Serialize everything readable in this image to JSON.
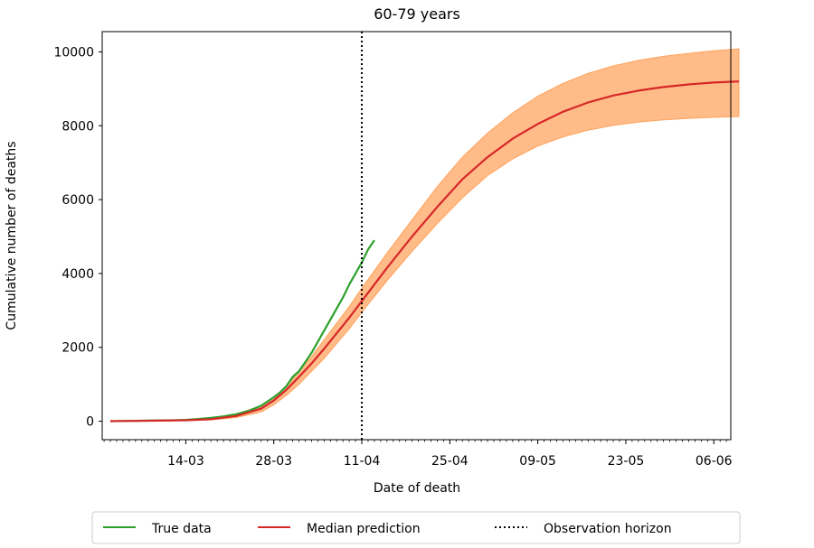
{
  "chart_data": {
    "type": "line",
    "title": "60-79 years",
    "xlabel": "Date of death",
    "ylabel": "Cumulative number of deaths",
    "x_unit": "days since 01-03",
    "xlim": [
      -0.3,
      99.7
    ],
    "ylim": [
      -500,
      10550
    ],
    "yticks": [
      0,
      2000,
      4000,
      6000,
      8000,
      10000
    ],
    "ytick_labels": [
      "0",
      "2000",
      "4000",
      "6000",
      "8000",
      "10000"
    ],
    "xticks": [
      13,
      27,
      41,
      55,
      69,
      83,
      97
    ],
    "xtick_labels": [
      "14-03",
      "28-03",
      "11-04",
      "25-04",
      "09-05",
      "23-05",
      "06-06"
    ],
    "observation_horizon": 41,
    "series": [
      {
        "name": "True data",
        "color": "#2ca02c",
        "x": [
          1,
          3,
          5,
          7,
          9,
          11,
          13,
          15,
          17,
          19,
          21,
          23,
          25,
          27,
          28,
          29,
          30,
          31,
          32,
          33,
          34,
          35,
          36,
          37,
          38,
          39,
          40,
          41,
          42,
          43
        ],
        "y": [
          0,
          5,
          10,
          15,
          20,
          25,
          35,
          60,
          90,
          130,
          190,
          280,
          420,
          650,
          780,
          950,
          1200,
          1350,
          1600,
          1850,
          2150,
          2450,
          2750,
          3050,
          3350,
          3700,
          4000,
          4300,
          4650,
          4900
        ]
      },
      {
        "name": "Median prediction",
        "color": "#d62728",
        "x": [
          1,
          5,
          9,
          13,
          17,
          21,
          25,
          27,
          29,
          31,
          33,
          35,
          37,
          39,
          41,
          45,
          49,
          53,
          57,
          61,
          65,
          69,
          73,
          77,
          81,
          85,
          89,
          93,
          97,
          101
        ],
        "y": [
          0,
          8,
          15,
          25,
          55,
          140,
          340,
          560,
          850,
          1200,
          1560,
          1960,
          2380,
          2800,
          3250,
          4150,
          5000,
          5800,
          6550,
          7150,
          7650,
          8050,
          8380,
          8630,
          8820,
          8950,
          9050,
          9120,
          9170,
          9200
        ]
      }
    ],
    "band": {
      "name": "Prediction interval",
      "color": "#ffbb88",
      "x": [
        1,
        5,
        9,
        13,
        17,
        21,
        25,
        27,
        29,
        31,
        33,
        35,
        37,
        39,
        41,
        45,
        49,
        53,
        57,
        61,
        65,
        69,
        73,
        77,
        81,
        85,
        89,
        93,
        97,
        101
      ],
      "lower": [
        0,
        5,
        10,
        15,
        35,
        100,
        250,
        440,
        700,
        1000,
        1350,
        1700,
        2100,
        2500,
        2950,
        3800,
        4600,
        5350,
        6050,
        6650,
        7100,
        7450,
        7700,
        7880,
        8010,
        8100,
        8160,
        8200,
        8230,
        8250
      ],
      "upper": [
        0,
        12,
        25,
        45,
        85,
        190,
        420,
        650,
        950,
        1350,
        1750,
        2200,
        2650,
        3100,
        3600,
        4550,
        5450,
        6350,
        7150,
        7800,
        8350,
        8800,
        9150,
        9420,
        9620,
        9770,
        9880,
        9960,
        10030,
        10080
      ]
    },
    "legend": {
      "position": "bottom-center",
      "entries": [
        {
          "label": "True data",
          "style": "solid",
          "color": "#2ca02c"
        },
        {
          "label": "Median prediction",
          "style": "solid",
          "color": "#d62728"
        },
        {
          "label": "Observation horizon",
          "style": "dotted",
          "color": "#000000"
        }
      ]
    }
  }
}
